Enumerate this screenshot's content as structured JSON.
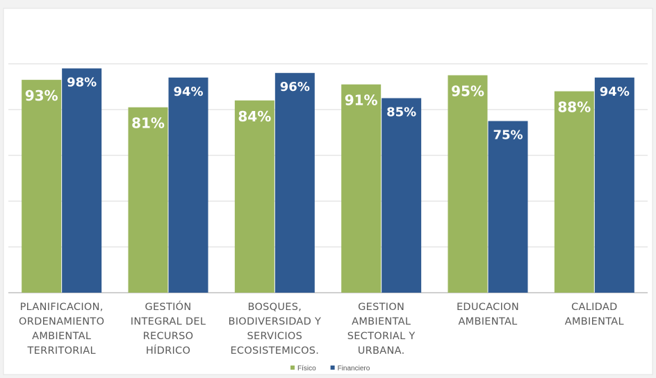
{
  "chart_data": {
    "type": "bar",
    "title": "",
    "xlabel": "",
    "ylabel": "",
    "ylim": [
      0,
      100
    ],
    "grid": true,
    "legend_position": "bottom",
    "categories": [
      [
        "PLANIFICACION,",
        "ORDENAMIENTO",
        "AMBIENTAL",
        "TERRITORIAL"
      ],
      [
        "GESTIÓN",
        "INTEGRAL DEL",
        "RECURSO",
        "HÍDRICO"
      ],
      [
        "BOSQUES,",
        "BIODIVERSIDAD Y",
        "SERVICIOS",
        "ECOSISTEMICOS."
      ],
      [
        "GESTION",
        "AMBIENTAL",
        "SECTORIAL Y",
        "URBANA."
      ],
      [
        "EDUCACION",
        "AMBIENTAL"
      ],
      [
        "CALIDAD",
        "AMBIENTAL"
      ]
    ],
    "series": [
      {
        "name": "Físico",
        "color": "#9bb65e",
        "values": [
          93,
          81,
          84,
          91,
          95,
          88
        ],
        "labels": [
          "93%",
          "81%",
          "84%",
          "91%",
          "95%",
          "88%"
        ]
      },
      {
        "name": "Financiero",
        "color": "#2f5a91",
        "values": [
          98,
          94,
          96,
          85,
          75,
          94
        ],
        "labels": [
          "98%",
          "94%",
          "96%",
          "85%",
          "75%",
          "94%"
        ]
      }
    ]
  }
}
